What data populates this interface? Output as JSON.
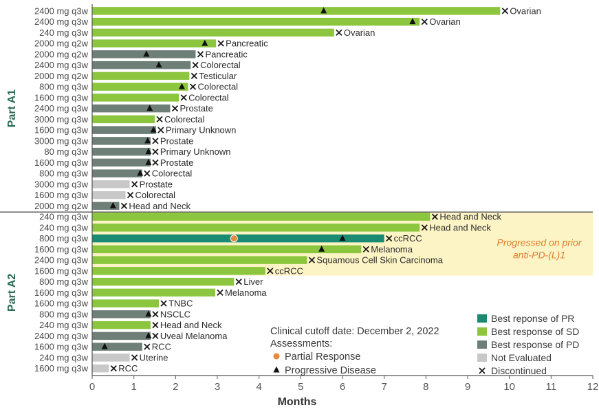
{
  "chart_data": {
    "type": "swimmer",
    "xlabel": "Months",
    "x_ticks": [
      0,
      1,
      2,
      3,
      4,
      5,
      6,
      7,
      8,
      9,
      10,
      11,
      12
    ],
    "xlim": [
      0,
      12
    ],
    "colors": {
      "PR": "#1a8a72",
      "SD": "#8cc63f",
      "PD": "#6e7f78",
      "NE": "#c8c8c8",
      "partial_response": "#e8883a",
      "progressive_disease": "#111111",
      "highlight": "#fdf4c6"
    },
    "parts": [
      {
        "label": "Part A1",
        "rows": [
          {
            "dose": "2400 mg q3w",
            "tumor": "Ovarian",
            "end": 9.78,
            "response": "SD",
            "pd": [
              5.55
            ]
          },
          {
            "dose": "2400 mg q3w",
            "tumor": "Ovarian",
            "end": 7.85,
            "response": "SD",
            "pd": [
              7.68
            ]
          },
          {
            "dose": "240 mg q3w",
            "tumor": "Ovarian",
            "end": 5.8,
            "response": "SD",
            "pd": []
          },
          {
            "dose": "2000 mg q2w",
            "tumor": "Pancreatic",
            "end": 2.97,
            "response": "SD",
            "pd": [
              2.7
            ]
          },
          {
            "dose": "2000 mg q2w",
            "tumor": "Pancreatic",
            "end": 2.48,
            "response": "PD",
            "pd": [
              1.3
            ]
          },
          {
            "dose": "2400 mg q3w",
            "tumor": "Colorectal",
            "end": 2.36,
            "response": "PD",
            "pd": [
              1.6
            ]
          },
          {
            "dose": "2000 mg q2w",
            "tumor": "Testicular",
            "end": 2.33,
            "response": "SD",
            "pd": []
          },
          {
            "dose": "800 mg q3w",
            "tumor": "Colorectal",
            "end": 2.3,
            "response": "SD",
            "pd": [
              2.15
            ]
          },
          {
            "dose": "1600 mg q3w",
            "tumor": "Colorectal",
            "end": 2.08,
            "response": "SD",
            "pd": []
          },
          {
            "dose": "2400 mg q3w",
            "tumor": "Prostate",
            "end": 1.87,
            "response": "PD",
            "pd": [
              1.38
            ]
          },
          {
            "dose": "3000 mg q3w",
            "tumor": "Colorectal",
            "end": 1.5,
            "response": "SD",
            "pd": []
          },
          {
            "dose": "1600 mg q3w",
            "tumor": "Primary Unknown",
            "end": 1.53,
            "response": "PD",
            "pd": [
              1.47
            ]
          },
          {
            "dose": "3000 mg q3w",
            "tumor": "Prostate",
            "end": 1.4,
            "response": "PD",
            "pd": [
              1.33
            ]
          },
          {
            "dose": "80 mg q3w",
            "tumor": "Primary Unknown",
            "end": 1.4,
            "response": "PD",
            "pd": [
              1.35
            ]
          },
          {
            "dose": "1600 mg q3w",
            "tumor": "Prostate",
            "end": 1.4,
            "response": "PD",
            "pd": [
              1.35
            ]
          },
          {
            "dose": "800 mg q3w",
            "tumor": "Colorectal",
            "end": 1.2,
            "response": "PD",
            "pd": [
              1.15
            ]
          },
          {
            "dose": "3000 mg q3w",
            "tumor": "Prostate",
            "end": 0.9,
            "response": "NE",
            "pd": []
          },
          {
            "dose": "1600 mg q3w",
            "tumor": "Colorectal",
            "end": 0.8,
            "response": "NE",
            "pd": []
          },
          {
            "dose": "2000 mg q2w",
            "tumor": "Head and Neck",
            "end": 0.65,
            "response": "PD",
            "pd": [
              0.5
            ]
          }
        ]
      },
      {
        "label": "Part A2",
        "rows": [
          {
            "dose": "240 mg q3w",
            "tumor": "Head and Neck",
            "end": 8.1,
            "response": "SD",
            "pd": [],
            "prior": true
          },
          {
            "dose": "240 mg q3w",
            "tumor": "Head and Neck",
            "end": 7.85,
            "response": "SD",
            "pd": [],
            "prior": true
          },
          {
            "dose": "800 mg q3w",
            "tumor": "ccRCC",
            "end": 7.0,
            "response": "PR",
            "pd": [
              6.0
            ],
            "pr": [
              3.4
            ],
            "prior": true
          },
          {
            "dose": "1600 mg q3w",
            "tumor": "Melanoma",
            "end": 6.45,
            "response": "SD",
            "pd": [
              5.5
            ],
            "prior": true
          },
          {
            "dose": "2400 mg q3w",
            "tumor": "Squamous Cell Skin Carcinoma",
            "end": 5.15,
            "response": "SD",
            "pd": [],
            "prior": true
          },
          {
            "dose": "1600 mg q3w",
            "tumor": "ccRCC",
            "end": 4.15,
            "response": "SD",
            "pd": [],
            "prior": true
          },
          {
            "dose": "800 mg q3w",
            "tumor": "Liver",
            "end": 3.4,
            "response": "SD",
            "pd": []
          },
          {
            "dose": "1600 mg q3w",
            "tumor": "Melanoma",
            "end": 2.95,
            "response": "SD",
            "pd": []
          },
          {
            "dose": "1600 mg q3w",
            "tumor": "TNBC",
            "end": 1.6,
            "response": "SD",
            "pd": []
          },
          {
            "dose": "800 mg q3w",
            "tumor": "NSCLC",
            "end": 1.4,
            "response": "PD",
            "pd": [
              1.35
            ]
          },
          {
            "dose": "240 mg q3w",
            "tumor": "Head and Neck",
            "end": 1.4,
            "response": "SD",
            "pd": []
          },
          {
            "dose": "2400 mg q3w",
            "tumor": "Uveal Melanoma",
            "end": 1.4,
            "response": "PD",
            "pd": [
              1.35
            ]
          },
          {
            "dose": "1600 mg q3w",
            "tumor": "RCC",
            "end": 1.2,
            "response": "PD",
            "pd": [
              0.3
            ]
          },
          {
            "dose": "240 mg q3w",
            "tumor": "Uterine",
            "end": 0.9,
            "response": "NE",
            "pd": []
          },
          {
            "dose": "1600 mg q3w",
            "tumor": "RCC",
            "end": 0.4,
            "response": "NE",
            "pd": []
          }
        ]
      }
    ],
    "annotation": {
      "line1": "Progressed on prior",
      "line2": "anti-PD-(L)1"
    },
    "notes": {
      "cutoff": "Clinical cutoff date: December 2, 2022",
      "assessments": "Assessments:",
      "partial_response": "Partial Response",
      "progressive_disease": "Progressive Disease"
    },
    "legend": [
      {
        "key": "PR",
        "label": "Best reponse of PR"
      },
      {
        "key": "SD",
        "label": "Best response of SD"
      },
      {
        "key": "PD",
        "label": "Best response of PD"
      },
      {
        "key": "NE",
        "label": "Not Evaluated"
      },
      {
        "key": "X",
        "label": "Discontinued"
      }
    ]
  }
}
